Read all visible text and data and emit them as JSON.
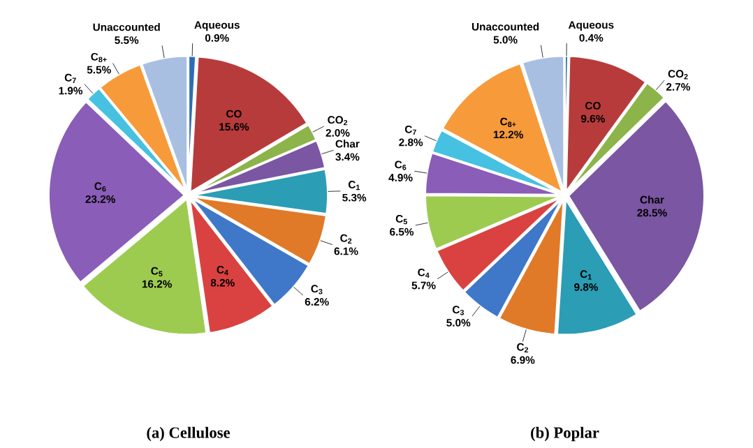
{
  "chart_data": [
    {
      "type": "pie",
      "title": "(a) Cellulose",
      "categories": [
        "Aqueous",
        "CO",
        "CO$_{2}$",
        "Char",
        "C$_{1}$",
        "C$_{2}$",
        "C$_{3}$",
        "C$_{4}$",
        "C$_{5}$",
        "C$_{6}$",
        "C$_{7}$",
        "C$_{8+}$",
        "Unaccounted"
      ],
      "values": [
        0.9,
        15.6,
        2.0,
        3.4,
        5.3,
        6.1,
        6.2,
        8.2,
        16.2,
        23.2,
        1.9,
        5.5,
        5.5
      ],
      "value_labels": [
        "0.9%",
        "15.6%",
        "2.0%",
        "3.4%",
        "5.3%",
        "6.1%",
        "6.2%",
        "8.2%",
        "16.2%",
        "23.2%",
        "1.9%",
        "5.5%",
        "5.5%"
      ],
      "colors": [
        "#2e6db4",
        "#b83b3b",
        "#8cb44a",
        "#7a56a3",
        "#2b9db5",
        "#e07a28",
        "#3f78c8",
        "#d94240",
        "#9dcb50",
        "#8a5db8",
        "#46c1e2",
        "#f79a3a",
        "#a9bfe2"
      ]
    },
    {
      "type": "pie",
      "title": "(b) Poplar",
      "categories": [
        "Aqueous",
        "CO",
        "CO$_{2}$",
        "Char",
        "C$_{1}$",
        "C$_{2}$",
        "C$_{3}$",
        "C$_{4}$",
        "C$_{5}$",
        "C$_{6}$",
        "C$_{7}$",
        "C$_{8+}$",
        "Unaccounted"
      ],
      "values": [
        0.4,
        9.6,
        2.7,
        28.5,
        9.8,
        6.9,
        5.0,
        5.7,
        6.5,
        4.9,
        2.8,
        12.2,
        5.0
      ],
      "value_labels": [
        "0.4%",
        "9.6%",
        "2.7%",
        "28.5%",
        "9.8%",
        "6.9%",
        "5.0%",
        "5.7%",
        "6.5%",
        "4.9%",
        "2.8%",
        "12.2%",
        "5.0%"
      ],
      "colors": [
        "#2e6db4",
        "#b83b3b",
        "#8cb44a",
        "#7a56a3",
        "#2b9db5",
        "#e07a28",
        "#3f78c8",
        "#d94240",
        "#9dcb50",
        "#8a5db8",
        "#46c1e2",
        "#f79a3a",
        "#a9bfe2"
      ]
    }
  ]
}
